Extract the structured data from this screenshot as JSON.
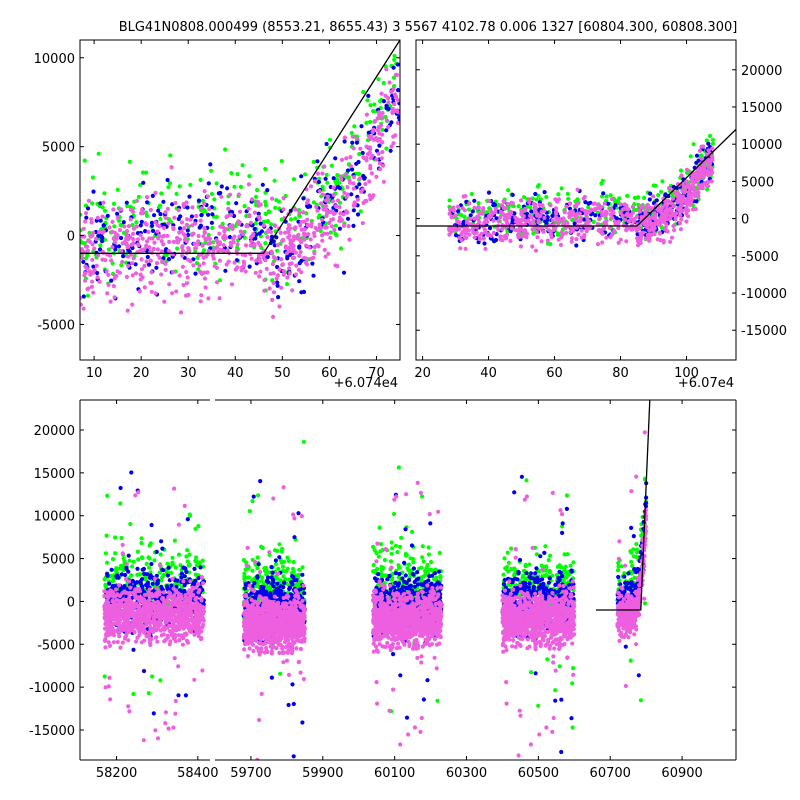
{
  "chart_data": {
    "type": "scatter",
    "title": "BLG41N0808.000499 (8553.21, 8655.43)  3 5567 4102.78 0.006 1327 [60804.300, 60808.300]",
    "series_colors": {
      "green": "#00ff00",
      "blue": "#0000ee",
      "pink": "#ee5fe0"
    },
    "panels": [
      {
        "name": "zoom-left",
        "xlim": [
          7,
          75
        ],
        "ylim": [
          -7000,
          11000
        ],
        "offset_label": "+6.074e4",
        "y_axis_side": "left",
        "xticks": [
          10,
          20,
          30,
          40,
          50,
          60,
          70
        ],
        "yticks": [
          -5000,
          0,
          5000,
          10000
        ],
        "model_curve": [
          [
            7,
            -1000
          ],
          [
            46,
            -1000
          ],
          [
            75,
            11000
          ]
        ],
        "clusters": [
          {
            "x_range": [
              7,
              46
            ],
            "baseline": -1000,
            "spread": 1400,
            "rise": 0
          },
          {
            "x_range": [
              46,
              75
            ],
            "baseline": -1000,
            "spread": 1400,
            "rise": 1
          }
        ]
      },
      {
        "name": "zoom-right",
        "xlim": [
          18,
          115
        ],
        "ylim": [
          -19000,
          24000
        ],
        "offset_label": "+6.07e4",
        "y_axis_side": "right",
        "xticks": [
          20,
          40,
          60,
          80,
          100
        ],
        "yticks": [
          -15000,
          -10000,
          -5000,
          0,
          5000,
          10000,
          15000,
          20000
        ],
        "model_curve": [
          [
            18,
            -1000
          ],
          [
            85,
            -1000
          ],
          [
            115,
            12000
          ]
        ],
        "clusters": [
          {
            "x_range": [
              28,
              85
            ],
            "baseline": -1000,
            "spread": 1500,
            "rise": 0
          },
          {
            "x_range": [
              85,
              108
            ],
            "baseline": -1000,
            "spread": 1500,
            "rise": 1
          }
        ]
      },
      {
        "name": "full-lightcurve",
        "broken_axis": true,
        "segments": [
          {
            "xlim": [
              58110,
              58430
            ],
            "xticks": [
              58200,
              58400
            ]
          },
          {
            "xlim": [
              59600,
              61050
            ],
            "xticks": [
              59700,
              59900,
              60100,
              60300,
              60500,
              60700,
              60900
            ]
          }
        ],
        "ylim": [
          -18500,
          23500
        ],
        "yticks": [
          -15000,
          -10000,
          -5000,
          0,
          5000,
          10000,
          15000,
          20000
        ],
        "model_curve": [
          [
            60660,
            -1000
          ],
          [
            60785,
            -1000
          ],
          [
            60810,
            23500
          ]
        ],
        "clusters": [
          {
            "x_range": [
              58170,
              58415
            ],
            "baseline": -1500,
            "spread": 1500
          },
          {
            "x_range": [
              59680,
              59850
            ],
            "baseline": -2500,
            "spread": 1500
          },
          {
            "x_range": [
              60040,
              60230
            ],
            "baseline": -2000,
            "spread": 1500
          },
          {
            "x_range": [
              60400,
              60600
            ],
            "baseline": -2000,
            "spread": 1500
          },
          {
            "x_range": [
              60720,
              60800
            ],
            "baseline": -1500,
            "spread": 1200
          }
        ]
      }
    ]
  }
}
